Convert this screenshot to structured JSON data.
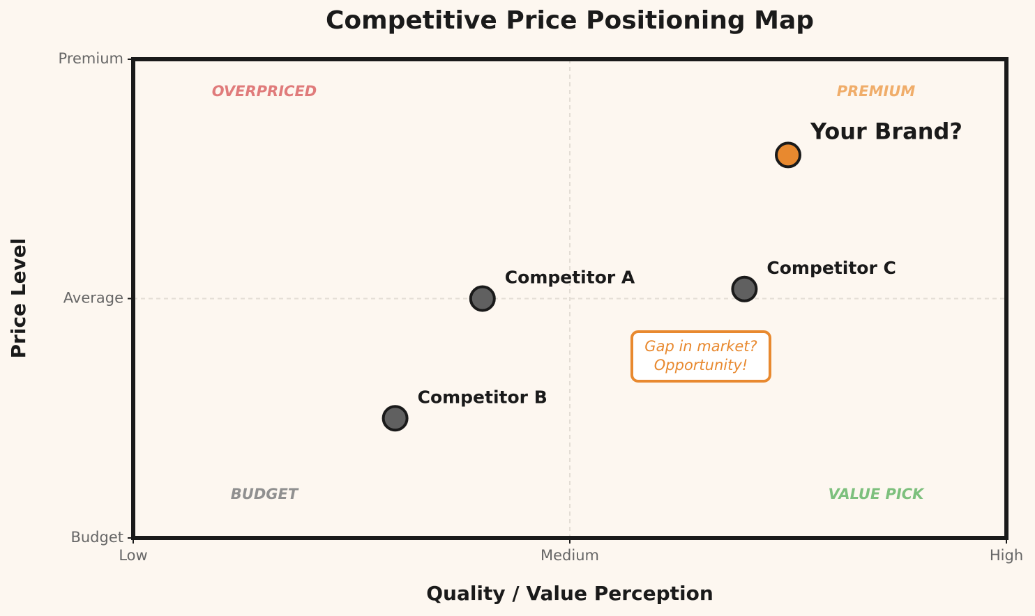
{
  "chart_data": {
    "type": "scatter",
    "title": "Competitive Price Positioning Map",
    "x_label": "Quality / Value Perception",
    "y_label": "Price Level",
    "xlim": [
      0,
      10
    ],
    "ylim": [
      0,
      10
    ],
    "xticks": [
      {
        "value": 0,
        "label": "Low"
      },
      {
        "value": 5,
        "label": "Medium"
      },
      {
        "value": 10,
        "label": "High"
      }
    ],
    "yticks": [
      {
        "value": 0,
        "label": "Budget"
      },
      {
        "value": 5,
        "label": "Average"
      },
      {
        "value": 10,
        "label": "Premium"
      }
    ],
    "grid": true,
    "series": [
      {
        "name": "Competitor A",
        "color": "#606060",
        "x": [
          4
        ],
        "values": [
          5
        ]
      },
      {
        "name": "Competitor B",
        "color": "#606060",
        "x": [
          3
        ],
        "values": [
          2.5
        ]
      },
      {
        "name": "Competitor C",
        "color": "#606060",
        "x": [
          7
        ],
        "values": [
          5.2
        ]
      },
      {
        "name": "Your Brand?",
        "color": "#e8892f",
        "x": [
          7.5
        ],
        "values": [
          8
        ],
        "highlight": true
      }
    ],
    "quadrants": [
      {
        "text": "OVERPRICED",
        "corner": "top-left",
        "color": "#e07b7b"
      },
      {
        "text": "PREMIUM",
        "corner": "top-right",
        "color": "#f0ad6a"
      },
      {
        "text": "BUDGET",
        "corner": "bottom-left",
        "color": "#909090"
      },
      {
        "text": "VALUE PICK",
        "corner": "bottom-right",
        "color": "#7dc07d"
      }
    ],
    "callout": {
      "lines": [
        "Gap in market?",
        "Opportunity!"
      ],
      "color": "#e8892f"
    }
  }
}
